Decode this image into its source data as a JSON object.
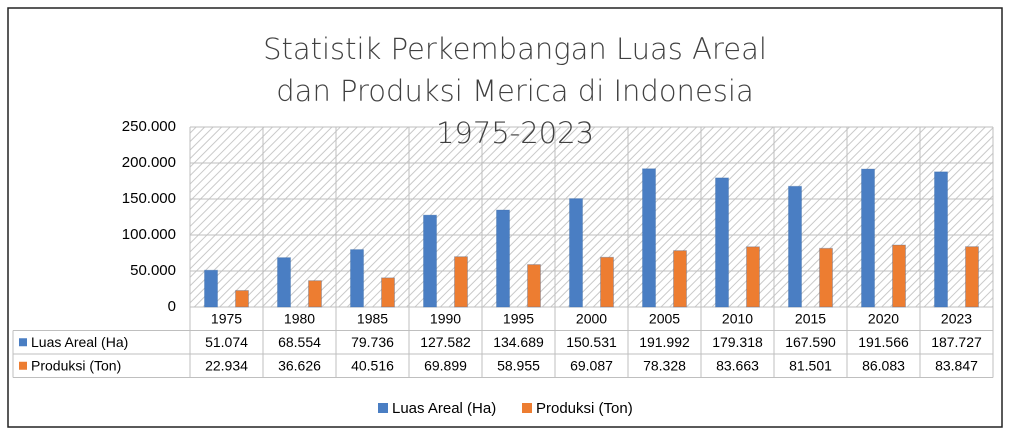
{
  "chart_data": {
    "type": "bar",
    "title": "Statistik Perkembangan Luas Areal dan Produksi Merica di Indonesia 1975-2023",
    "categories": [
      "1975",
      "1980",
      "1985",
      "1990",
      "1995",
      "2000",
      "2005",
      "2010",
      "2015",
      "2020",
      "2023"
    ],
    "series": [
      {
        "name": "Luas Areal (Ha)",
        "color": "#4a7ec3",
        "values": [
          51074,
          68554,
          79736,
          127582,
          134689,
          150531,
          191992,
          179318,
          167590,
          191566,
          187727
        ],
        "value_labels": [
          "51.074",
          "68.554",
          "79.736",
          "127.582",
          "134.689",
          "150.531",
          "191.992",
          "179.318",
          "167.590",
          "191.566",
          "187.727"
        ]
      },
      {
        "name": "Produksi (Ton)",
        "color": "#ed7d31",
        "values": [
          22934,
          36626,
          40516,
          69899,
          58955,
          69087,
          78328,
          83663,
          81501,
          86083,
          83847
        ],
        "value_labels": [
          "22.934",
          "36.626",
          "40.516",
          "69.899",
          "58.955",
          "69.087",
          "78.328",
          "83.663",
          "81.501",
          "86.083",
          "83.847"
        ]
      }
    ],
    "ylim": [
      0,
      250000
    ],
    "yticks": [
      0,
      {
        "value": 50000,
        "label": "50.000"
      },
      {
        "value": 100000,
        "label": "100.000"
      },
      {
        "value": 150000,
        "label": "150.000"
      },
      {
        "value": 200000,
        "label": "200.000"
      },
      {
        "value": 250000,
        "label": "250.000"
      }
    ],
    "grid": true,
    "legend": "bottom"
  }
}
